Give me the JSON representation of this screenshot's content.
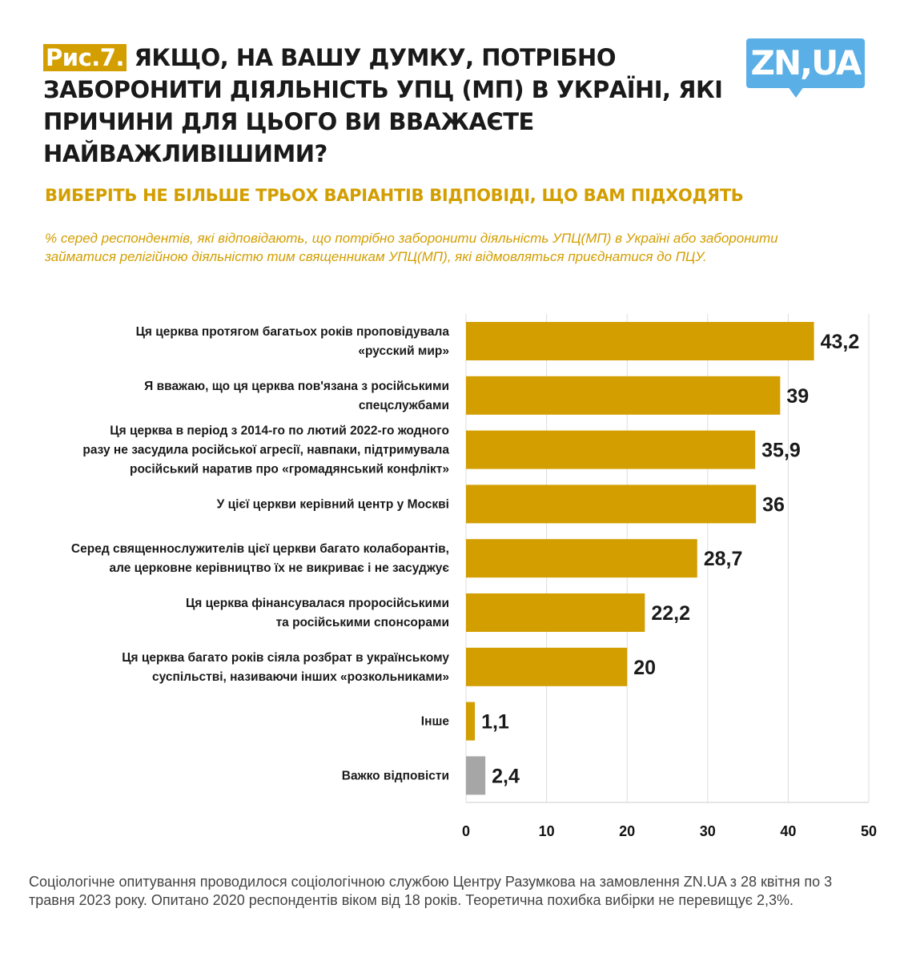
{
  "header": {
    "fig_label": "Рис.7.",
    "title": "ЯКЩО, НА ВАШУ ДУМКУ, ПОТРІБНО ЗАБОРОНИТИ ДІЯЛЬНІСТЬ УПЦ (МП) В УКРАЇНІ, ЯКІ ПРИЧИНИ ДЛЯ ЦЬОГО ВИ ВВАЖАЄТЕ НАЙВАЖЛИВІШИМИ?",
    "logo": "ZN,UA"
  },
  "subtitle": "ВИБЕРІТЬ НЕ БІЛЬШЕ ТРЬОХ  ВАРІАНТІВ ВІДПОВІДІ, ЩО ВАМ ПІДХОДЯТЬ",
  "note": "% серед респондентів, які відповідають, що потрібно заборонити діяльність УПЦ(МП) в Україні або заборонити займатися релігійною діяльністю тим священникам УПЦ(МП), які відмовляться приєднатися до ПЦУ.",
  "footer": "Соціологічне опитування проводилося соціологічною службою Центру Разумкова на замовлення ZN.UA з 28 квітня по 3 травня 2023 року. Опитано 2020 респондентів віком від 18 років. Теоретична похибка вибірки не перевищує 2,3%.",
  "chart_data": {
    "type": "bar",
    "orientation": "horizontal",
    "categories": [
      [
        "Ця церква протягом багатьох років проповідувала",
        "«русский мир»"
      ],
      [
        "Я вважаю, що ця церква пов'язана з російськими",
        "спецслужбами"
      ],
      [
        "Ця церква в період з 2014-го по лютий 2022-го жодного",
        "разу не засудила російської агресії, навпаки, підтримувала",
        "російський наратив про «громадянський конфлікт»"
      ],
      [
        "У цієї церкви керівний центр у Москві"
      ],
      [
        "Серед священнослужителів цієї церкви багато колаборантів,",
        "але церковне керівництво їх не викриває і не засуджує"
      ],
      [
        "Ця церква фінансувалася проросійськими",
        "та російськими спонсорами"
      ],
      [
        "Ця церква багато років сіяла розбрат в українському",
        "суспільстві, називаючи інших «розкольниками»"
      ],
      [
        "Інше"
      ],
      [
        "Важко відповісти"
      ]
    ],
    "values": [
      43.2,
      39,
      35.9,
      36,
      28.7,
      22.2,
      20,
      1.1,
      2.4
    ],
    "value_labels": [
      "43,2",
      "39",
      "35,9",
      "36",
      "28,7",
      "22,2",
      "20",
      "1,1",
      "2,4"
    ],
    "colors": [
      "#d39e00",
      "#d39e00",
      "#d39e00",
      "#d39e00",
      "#d39e00",
      "#d39e00",
      "#d39e00",
      "#d39e00",
      "#a6a6a6"
    ],
    "xlim": [
      0,
      50
    ],
    "xticks": [
      "0",
      "10",
      "20",
      "30",
      "40",
      "50"
    ],
    "grid": true
  }
}
